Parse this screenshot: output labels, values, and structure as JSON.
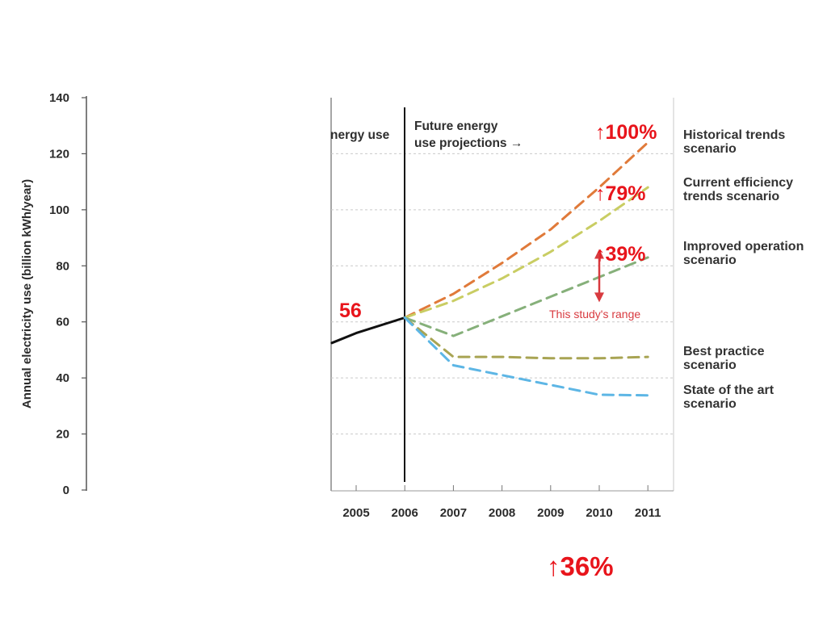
{
  "chart_data": {
    "type": "line",
    "ylabel": "Annual electricity use (billion kWh/year)",
    "ylim": [
      0,
      140
    ],
    "y_ticks": [
      "0",
      "20",
      "40",
      "60",
      "80",
      "100",
      "120",
      "140"
    ],
    "x_ticks": [
      "2005",
      "2006",
      "2007",
      "2008",
      "2009",
      "2010",
      "2011"
    ],
    "xlim": [
      2004.5,
      2011.5
    ],
    "grid": "horizontal dashed",
    "section_labels": {
      "past": "nergy use",
      "future": "Future energy\nuse projections →"
    },
    "series": [
      {
        "key": "historical",
        "x": [
          2004.5,
          2005,
          2006
        ],
        "y": [
          52.5,
          56,
          61.5
        ],
        "color": "#111111",
        "dashed": false
      },
      {
        "key": "hist_trends",
        "name": "Historical trends\nscenario",
        "x": [
          2006,
          2007,
          2008,
          2009,
          2010,
          2011
        ],
        "y": [
          61.5,
          70,
          81,
          93,
          108,
          124
        ],
        "color": "#e07a3a",
        "dashed": true
      },
      {
        "key": "cur_eff",
        "name": "Current efficiency\ntrends scenario",
        "x": [
          2006,
          2007,
          2008,
          2009,
          2010,
          2011
        ],
        "y": [
          61.5,
          67.5,
          75.5,
          85,
          96,
          108
        ],
        "color": "#c9cd63",
        "dashed": true
      },
      {
        "key": "improved",
        "name": "Improved operation\nscenario",
        "x": [
          2006,
          2007,
          2008,
          2009,
          2010,
          2011
        ],
        "y": [
          61.5,
          55,
          62,
          69,
          76,
          83
        ],
        "color": "#86b07a",
        "dashed": true
      },
      {
        "key": "best",
        "name": "Best practice\nscenario",
        "x": [
          2006,
          2007,
          2008,
          2009,
          2010,
          2011
        ],
        "y": [
          61.5,
          47.5,
          47.5,
          47,
          47,
          47.5
        ],
        "color": "#a8a453",
        "dashed": true
      },
      {
        "key": "sota",
        "name": "State of the art\nscenario",
        "x": [
          2006,
          2007,
          2008,
          2009,
          2010,
          2011
        ],
        "y": [
          61.5,
          44.5,
          41,
          37.5,
          34,
          33.8
        ],
        "color": "#5db6e5",
        "dashed": true
      }
    ],
    "range_marker": {
      "label": "This study's range",
      "x": 2010,
      "y_top": 86,
      "y_bottom": 67,
      "color": "#d83a3f"
    }
  },
  "annotations": {
    "start_value": "56",
    "hist_trends_growth": "↑100%",
    "cur_eff_growth": "↑79%",
    "improved_growth": "↑39%",
    "bottom_growth": "↑36%"
  }
}
